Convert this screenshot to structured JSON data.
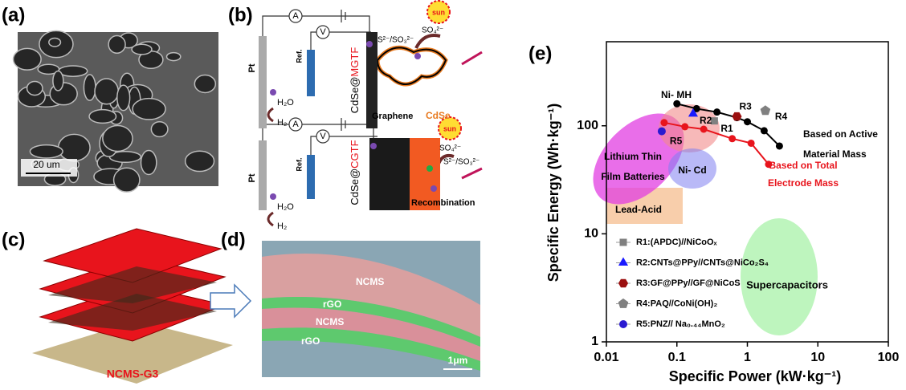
{
  "panels": {
    "a": {
      "label": "(a)",
      "scale_bar": "20 um"
    },
    "b": {
      "label": "(b)",
      "ammeter": [
        "A",
        "A"
      ],
      "voltmeter": [
        "V",
        "V"
      ],
      "counter": [
        "Pt",
        "Pt"
      ],
      "reference": [
        "Ref.",
        "Ref."
      ],
      "water": [
        "H₂O",
        "H₂O"
      ],
      "hydrogen": [
        "H₂",
        "H₂"
      ],
      "electrode_top": [
        "CdSe@",
        "MGTF"
      ],
      "electrode_bottom": [
        "CdSe@",
        "CGTF"
      ],
      "sulfate": [
        "SO₄²⁻",
        "SO₄²⁻"
      ],
      "sulfide": [
        "S²⁻/SO₃²⁻",
        "S²⁻/SO₃²⁻"
      ],
      "sun": [
        "sun",
        "sun"
      ],
      "graphene": "Graphene",
      "cdse": "CdSe",
      "recombination": "Recombination"
    },
    "c": {
      "label": "(c)",
      "caption": "NCMS-G3"
    },
    "d": {
      "label": "(d)",
      "layers": [
        "NCMS",
        "rGO",
        "NCMS",
        "rGO"
      ],
      "scale_bar": "1μm"
    }
  },
  "chart_data": {
    "type": "line",
    "panel_label": "(e)",
    "xlabel": "Specific Power (kW·kg⁻¹)",
    "ylabel": "Specific Energy (Wh·kg⁻¹)",
    "xscale": "log",
    "yscale": "log",
    "xlim": [
      0.01,
      100
    ],
    "ylim": [
      1,
      600
    ],
    "xticks": [
      0.01,
      0.1,
      1,
      10,
      100
    ],
    "yticks": [
      1,
      10,
      100
    ],
    "series": [
      {
        "color": "#000000",
        "x": [
          0.1,
          0.19,
          0.37,
          0.71,
          1.0,
          1.73,
          2.85
        ],
        "values": [
          160,
          144,
          134,
          119,
          109,
          90,
          65
        ],
        "annotation": [
          "Based on Active",
          "Material Mass"
        ]
      },
      {
        "color": "#e8141c",
        "x": [
          0.066,
          0.13,
          0.24,
          0.61,
          1.13,
          2.0
        ],
        "values": [
          107,
          98,
          93,
          76,
          69,
          44
        ],
        "annotation": [
          "Based on Total",
          "Electrode Mass"
        ]
      },
      {
        "name": "R1:(APDC)//NiCoOₓ",
        "point_label": "R1",
        "marker": "square",
        "color": "#808080",
        "x": [
          0.34
        ],
        "values": [
          111
        ]
      },
      {
        "name": "R2:CNTs@PPy//CNTs@NiCo₂S₄",
        "point_label": "R2",
        "marker": "triangle",
        "color": "#1a1aff",
        "x": [
          0.17
        ],
        "values": [
          129
        ]
      },
      {
        "name": "R3:GF@PPy//GF@NiCoS",
        "point_label": "R3",
        "marker": "hexagon",
        "color": "#9b1010",
        "x": [
          0.71
        ],
        "values": [
          122
        ]
      },
      {
        "name": "R4:PAQ//CoNi(OH)₂",
        "point_label": "R4",
        "marker": "pentagon",
        "color": "#808080",
        "x": [
          1.8
        ],
        "values": [
          138
        ]
      },
      {
        "name": "R5:PNZ// Na₀.₄₄MnO₂",
        "point_label": "R5",
        "marker": "circle",
        "color": "#2a1ad0",
        "x": [
          0.061
        ],
        "values": [
          89
        ]
      }
    ],
    "regions": [
      {
        "label": [
          "Lithium Thin",
          "Film Batteries"
        ],
        "color": "#e23ee2"
      },
      {
        "label": [
          "Ni- MH"
        ],
        "color": "#f28a8a"
      },
      {
        "label": [
          "Ni- Cd"
        ],
        "color": "#7f7ff0"
      },
      {
        "label": [
          "Lead-Acid"
        ],
        "color": "#f7c9a2"
      },
      {
        "label": [
          "Supercapacitors"
        ],
        "color": "#92ee92"
      }
    ]
  }
}
